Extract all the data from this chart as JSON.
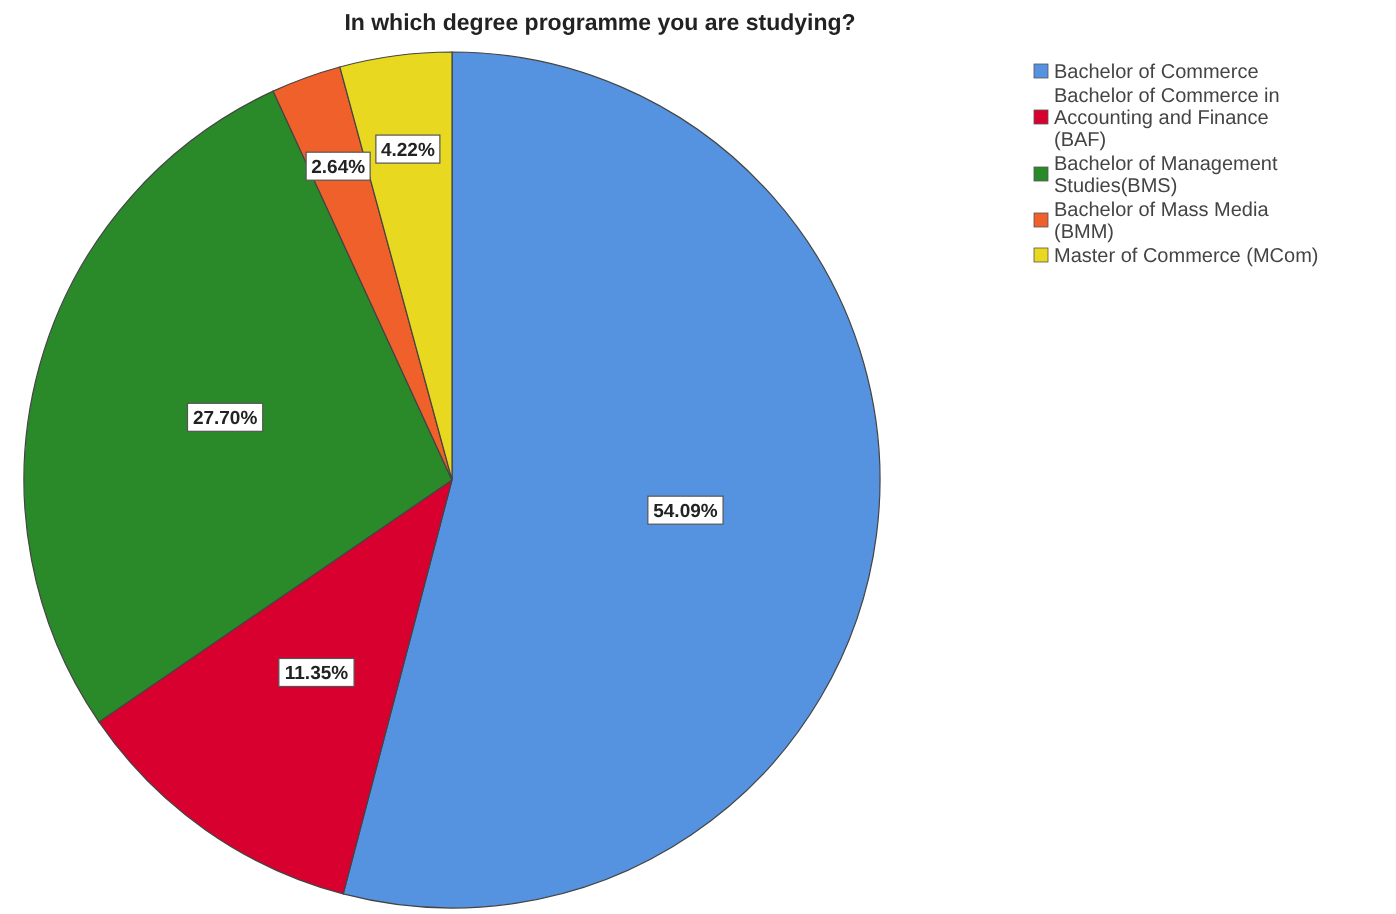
{
  "chart_data": {
    "type": "pie",
    "title": "In which degree programme you are studying?",
    "categories": [
      "Bachelor of Commerce",
      "Bachelor of Commerce in Accounting and Finance (BAF)",
      "Bachelor of Management Studies(BMS)",
      "Bachelor of Mass Media (BMM)",
      "Master of Commerce (MCom)"
    ],
    "values": [
      54.09,
      11.35,
      27.7,
      2.64,
      4.22
    ],
    "value_labels": [
      "54.09%",
      "11.35%",
      "27.70%",
      "2.64%",
      "4.22%"
    ],
    "colors": [
      "#5592e0",
      "#d7002f",
      "#2a8a2a",
      "#f0602a",
      "#e8d820"
    ],
    "legend": "top right"
  }
}
